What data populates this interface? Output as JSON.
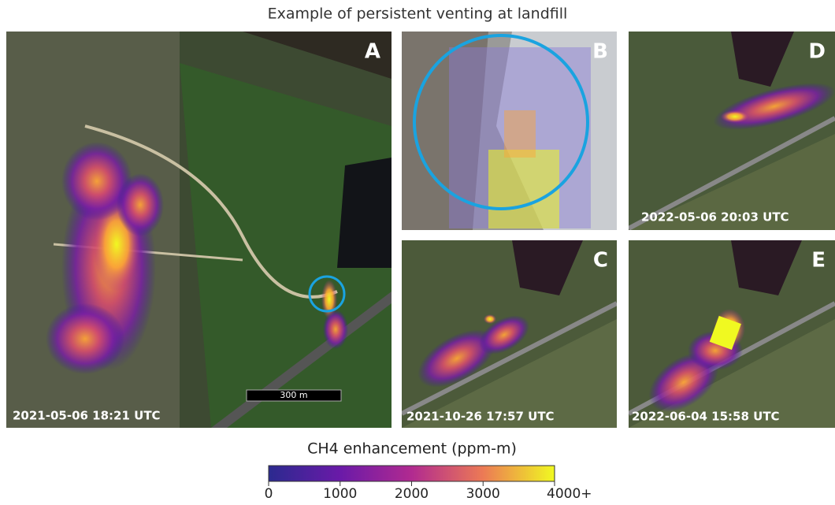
{
  "title": "Example of persistent venting at landfill",
  "panels": [
    {
      "label": "A",
      "timestamp": "2021-05-06 18:21 UTC",
      "scale_bar": "300 m"
    },
    {
      "label": "B"
    },
    {
      "label": "C",
      "timestamp": "2021-10-26 17:57 UTC"
    },
    {
      "label": "D",
      "timestamp": "2022-05-06 20:03 UTC"
    },
    {
      "label": "E",
      "timestamp": "2022-06-04 15:58 UTC"
    }
  ],
  "colorbar": {
    "title": "CH4 enhancement (ppm-m)",
    "lim": [
      0,
      4000
    ],
    "ticks": [
      0,
      1000,
      2000,
      3000,
      {
        "value": 4000,
        "label": "4000+"
      }
    ]
  }
}
